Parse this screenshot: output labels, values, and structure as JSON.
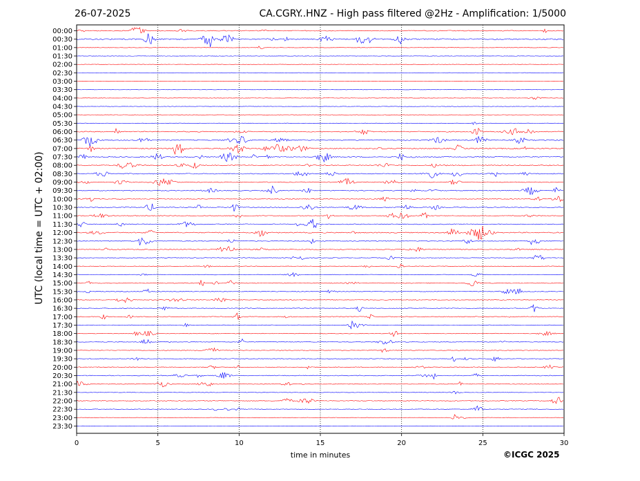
{
  "header": {
    "date": "26-07-2025",
    "title": "CA.CGRY..HNZ - High pass filtered @2Hz - Amplification: 1/5000"
  },
  "chart_data": {
    "type": "line",
    "title": "CA.CGRY..HNZ - High pass filtered @2Hz - Amplification: 1/5000",
    "xlabel": "time in minutes",
    "ylabel": "UTC (local time = UTC + 02:00)",
    "xlim": [
      0,
      30
    ],
    "x_ticks": [
      "0",
      "5",
      "10",
      "15",
      "20",
      "25",
      "30"
    ],
    "row_labels": [
      "00:00",
      "00:30",
      "01:00",
      "01:30",
      "02:00",
      "02:30",
      "03:00",
      "03:30",
      "04:00",
      "04:30",
      "05:00",
      "05:30",
      "06:00",
      "06:30",
      "07:00",
      "07:30",
      "08:00",
      "08:30",
      "09:00",
      "09:30",
      "10:00",
      "10:30",
      "11:00",
      "11:30",
      "12:00",
      "12:30",
      "13:00",
      "13:30",
      "14:00",
      "14:30",
      "15:00",
      "15:30",
      "16:00",
      "16:30",
      "17:00",
      "17:30",
      "18:00",
      "18:30",
      "19:00",
      "19:30",
      "20:00",
      "20:30",
      "21:00",
      "21:30",
      "22:00",
      "22:30",
      "23:00",
      "23:30"
    ],
    "trace_colors": [
      "#ff0000",
      "#0000ff"
    ],
    "grid": "vertical dotted lines at x ticks",
    "activity": [
      0.5,
      0.9,
      0.05,
      0.02,
      0.02,
      0.02,
      0.02,
      0.02,
      0.05,
      0.02,
      0.03,
      0.08,
      0.6,
      0.7,
      0.85,
      0.7,
      0.6,
      0.6,
      0.5,
      0.55,
      0.3,
      0.5,
      0.5,
      0.45,
      0.7,
      0.5,
      0.5,
      0.25,
      0.2,
      0.2,
      0.4,
      0.35,
      0.25,
      0.3,
      0.45,
      0.2,
      0.25,
      0.35,
      0.2,
      0.3,
      0.35,
      0.4,
      0.4,
      0.05,
      0.3,
      0.3,
      0.15,
      0.02
    ]
  },
  "footer": {
    "credit": "©ICGC 2025"
  }
}
